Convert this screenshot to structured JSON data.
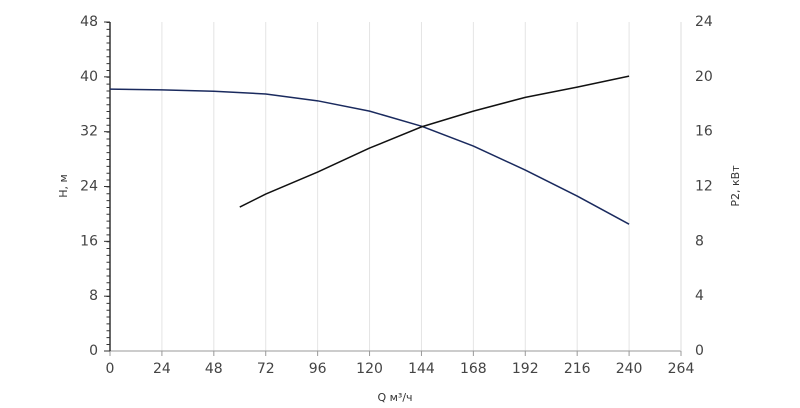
{
  "chart_data": {
    "type": "line",
    "xlabel": "Q м³/ч",
    "ylabel": "H, м",
    "y2label": "P2, кВт",
    "xlim": [
      0,
      264
    ],
    "xticks": [
      0,
      24,
      48,
      72,
      96,
      120,
      144,
      168,
      192,
      216,
      240,
      264
    ],
    "ylim": [
      0,
      48
    ],
    "yticks": [
      0,
      8,
      16,
      24,
      32,
      40,
      48
    ],
    "y2lim": [
      0,
      24
    ],
    "y2ticks": [
      0,
      4,
      8,
      12,
      16,
      20,
      24
    ],
    "grid": true,
    "series": [
      {
        "color": "#1a2a5e",
        "x": [
          0,
          24,
          48,
          72,
          96,
          120,
          144,
          168,
          192,
          216,
          240
        ],
        "values": [
          38.2,
          38.1,
          37.9,
          37.5,
          36.5,
          35.0,
          32.8,
          29.9,
          26.4,
          22.6,
          18.5
        ]
      },
      {
        "color": "#111111",
        "axis": "y2",
        "x": [
          60,
          72,
          96,
          120,
          144,
          168,
          192,
          216,
          240
        ],
        "values": [
          10.5,
          11.45,
          13.05,
          14.8,
          16.35,
          17.5,
          18.5,
          19.25,
          20.05
        ]
      }
    ]
  }
}
